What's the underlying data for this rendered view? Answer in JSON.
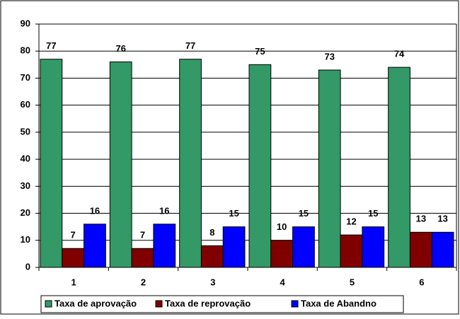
{
  "chart_data": {
    "type": "bar",
    "categories": [
      "1",
      "2",
      "3",
      "4",
      "5",
      "6"
    ],
    "series": [
      {
        "name": "Taxa de aprovação",
        "color": "#339966",
        "values": [
          77,
          76,
          77,
          75,
          73,
          74
        ]
      },
      {
        "name": "Taxa de reprovação",
        "color": "#800000",
        "values": [
          7,
          7,
          8,
          10,
          12,
          13
        ]
      },
      {
        "name": "Taxa de Abandno",
        "color": "#0000ff",
        "values": [
          16,
          16,
          15,
          15,
          15,
          13
        ]
      }
    ],
    "ylim": [
      0,
      90
    ],
    "yticks": [
      0,
      10,
      20,
      30,
      40,
      50,
      60,
      70,
      80,
      90
    ],
    "grid": true,
    "legend": "bottom"
  }
}
